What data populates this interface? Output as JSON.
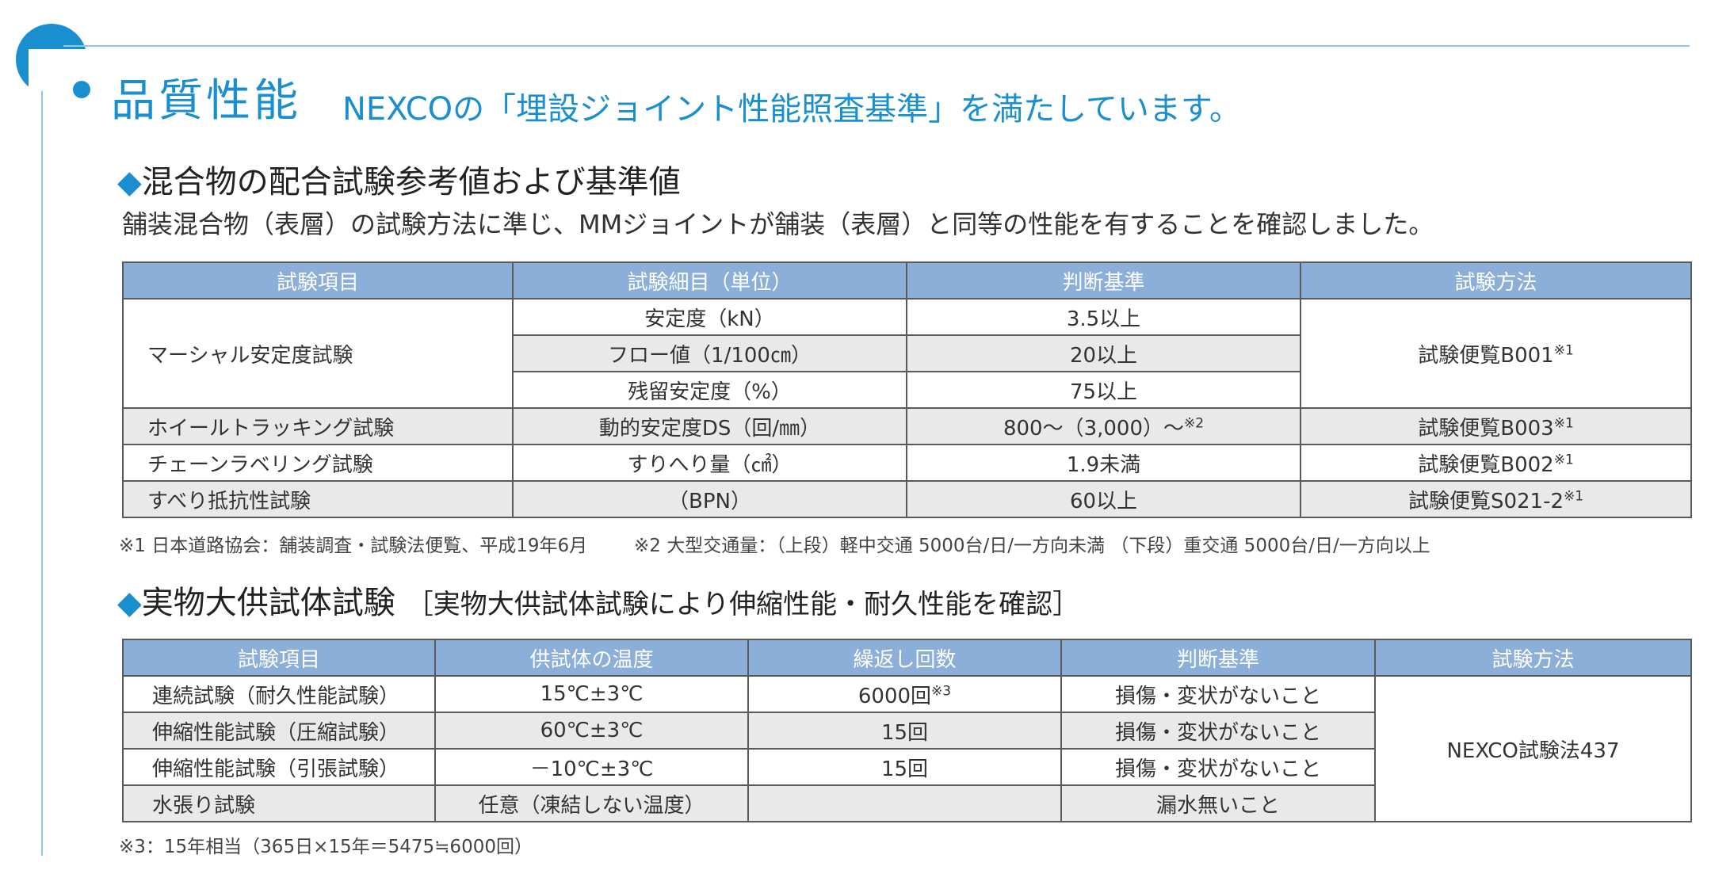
{
  "header": {
    "title": "品質性能",
    "subtitle": "NEXCOの「埋設ジョイント性能照査基準」を満たしています。"
  },
  "section1": {
    "heading": "混合物の配合試験参考値および基準値",
    "description": "舗装混合物（表層）の試験方法に準じ、MMジョイントが舗装（表層）と同等の性能を有することを確認しました。",
    "columns": [
      "試験項目",
      "試験細目（単位）",
      "判断基準",
      "試験方法"
    ],
    "rows": {
      "marshall": {
        "item": "マーシャル安定度試験",
        "method": "試験便覧B001",
        "method_note": "※1",
        "sub": [
          {
            "detail": "安定度（kN）",
            "criteria": "3.5以上"
          },
          {
            "detail": "フロー値（1/100㎝）",
            "criteria": "20以上"
          },
          {
            "detail": "残留安定度（%）",
            "criteria": "75以上"
          }
        ]
      },
      "wheel": {
        "item": "ホイールトラッキング試験",
        "detail": "動的安定度DS（回/㎜）",
        "criteria": "800～（3,000）～",
        "criteria_note": "※2",
        "method": "試験便覧B003",
        "method_note": "※1"
      },
      "chain": {
        "item": "チェーンラベリング試験",
        "detail": "すりへり量（㎠）",
        "criteria": "1.9未満",
        "method": "試験便覧B002",
        "method_note": "※1"
      },
      "skid": {
        "item": "すべり抵抗性試験",
        "detail": "（BPN）",
        "criteria": "60以上",
        "method": "試験便覧S021-2",
        "method_note": "※1"
      }
    },
    "footnote1": "※1 日本道路協会：舗装調査・試験法便覧、平成19年6月",
    "footnote2": "※2 大型交通量：（上段）軽中交通 5000台/日/一方向未満 （下段）重交通 5000台/日/一方向以上"
  },
  "section2": {
    "heading": "実物大供試体試験",
    "heading_sub": "［実物大供試体試験により伸縮性能・耐久性能を確認］",
    "columns": [
      "試験項目",
      "供試体の温度",
      "繰返し回数",
      "判断基準",
      "試験方法"
    ],
    "method": "NEXCO試験法437",
    "rows": [
      {
        "item": "連続試験（耐久性能試験）",
        "temp": "15℃±3℃",
        "count": "6000回",
        "count_note": "※3",
        "criteria": "損傷・変状がないこと"
      },
      {
        "item": "伸縮性能試験（圧縮試験）",
        "temp": "60℃±3℃",
        "count": "15回",
        "count_note": "",
        "criteria": "損傷・変状がないこと"
      },
      {
        "item": "伸縮性能試験（引張試験）",
        "temp": "－10℃±3℃",
        "count": "15回",
        "count_note": "",
        "criteria": "損傷・変状がないこと"
      },
      {
        "item": "水張り試験",
        "temp": "任意（凍結しない温度）",
        "count": "",
        "count_note": "",
        "criteria": "漏水無いこと"
      }
    ],
    "footnote3": "※3：15年相当（365日×15年＝5475≒6000回）"
  },
  "colors": {
    "accent": "#1a8fd0",
    "table_header": "#8bafd9",
    "row_shade": "#e9e9e9"
  }
}
